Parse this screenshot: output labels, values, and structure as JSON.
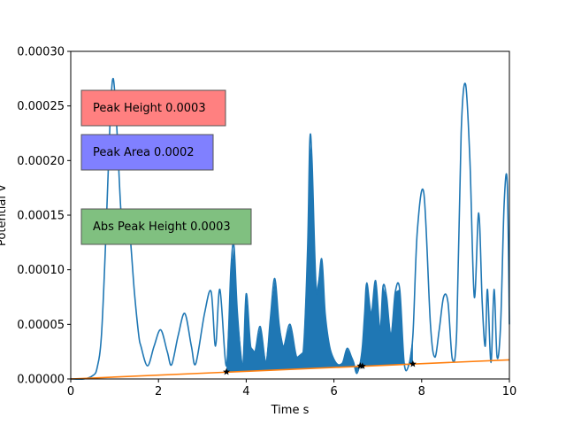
{
  "chart_data": {
    "type": "line",
    "title": "",
    "xlabel": "Time s",
    "ylabel": "Potential V",
    "xlim": [
      0,
      10
    ],
    "ylim": [
      0,
      0.0003
    ],
    "xticks": [
      "0",
      "2",
      "4",
      "6",
      "8",
      "10"
    ],
    "yticks": [
      "0.00000",
      "0.00005",
      "0.00010",
      "0.00015",
      "0.00020",
      "0.00025",
      "0.00030"
    ],
    "grid": false,
    "colors": {
      "signal": "#1f77b4",
      "baseline": "#ff7f0e",
      "peak_height_box": "#ff8080",
      "peak_area_box": "#8080ff",
      "abs_peak_box": "#80c080",
      "marker": "#000000"
    },
    "series": [
      {
        "key": "signal",
        "x": [
          0,
          0.3,
          0.5,
          0.6,
          0.7,
          0.8,
          0.9,
          0.97,
          1.05,
          1.15,
          1.25,
          1.32,
          1.45,
          1.55,
          1.6,
          1.75,
          1.9,
          2.05,
          2.2,
          2.3,
          2.45,
          2.6,
          2.75,
          2.85,
          3.05,
          3.2,
          3.3,
          3.4,
          3.55,
          3.65,
          3.72,
          3.8,
          3.92,
          4.0,
          4.1,
          4.2,
          4.32,
          4.45,
          4.55,
          4.65,
          4.75,
          4.85,
          5.0,
          5.15,
          5.3,
          5.4,
          5.45,
          5.5,
          5.6,
          5.72,
          5.8,
          5.9,
          6.0,
          6.1,
          6.2,
          6.3,
          6.4,
          6.45,
          6.52,
          6.6,
          6.65,
          6.7,
          6.75,
          6.85,
          6.95,
          7.05,
          7.12,
          7.2,
          7.3,
          7.4,
          7.5,
          7.6,
          7.7,
          7.8,
          7.9,
          8.05,
          8.2,
          8.3,
          8.4,
          8.5,
          8.6,
          8.7,
          8.8,
          8.9,
          9.0,
          9.1,
          9.2,
          9.3,
          9.38,
          9.45,
          9.5,
          9.58,
          9.65,
          9.72,
          9.8,
          9.88,
          9.95,
          10.0
        ],
        "y": [
          0,
          0.0,
          3e-06,
          1e-05,
          4e-05,
          0.00013,
          0.00024,
          0.000275,
          0.00023,
          0.00015,
          0.000125,
          0.000145,
          8e-05,
          4e-05,
          3e-05,
          1.2e-05,
          3e-05,
          4.5e-05,
          2.5e-05,
          1.3e-05,
          4e-05,
          6e-05,
          3e-05,
          1.4e-05,
          6e-05,
          8e-05,
          3e-05,
          8.2e-05,
          1.2e-05,
          0.0001,
          0.000122,
          6e-05,
          1.2e-05,
          7.8e-05,
          3e-05,
          2.5e-05,
          4.8e-05,
          1.5e-05,
          5.5e-05,
          9.2e-05,
          5e-05,
          3e-05,
          5e-05,
          2e-05,
          2.5e-05,
          0.00012,
          0.000218,
          0.0002,
          8e-05,
          0.00011,
          6e-05,
          3e-05,
          1.8e-05,
          1.3e-05,
          1.5e-05,
          2.8e-05,
          2e-05,
          1.5e-05,
          5e-06,
          1.5e-05,
          3e-05,
          6e-05,
          8.8e-05,
          6e-05,
          9e-05,
          4.5e-05,
          8.5e-05,
          7.5e-05,
          4e-05,
          8e-05,
          8.2e-05,
          1.5e-05,
          1.2e-05,
          4e-05,
          0.000135,
          0.00017,
          5e-05,
          2e-05,
          4.5e-05,
          7.5e-05,
          7e-05,
          1.8e-05,
          4.5e-05,
          0.000225,
          0.00027,
          0.0002,
          7.5e-05,
          0.000152,
          7e-05,
          3e-05,
          8.2e-05,
          1.5e-05,
          8.2e-05,
          2e-05,
          5e-05,
          0.00016,
          0.00018,
          5e-05
        ]
      },
      {
        "key": "baseline",
        "x": [
          0,
          10
        ],
        "y": [
          0,
          1.75e-05
        ]
      }
    ],
    "filled_regions": [
      {
        "x_start": 3.55,
        "x_end": 6.62
      },
      {
        "x_start": 6.62,
        "x_end": 7.8
      }
    ],
    "markers": [
      {
        "x": 3.55,
        "y": 6.5e-06
      },
      {
        "x": 6.6,
        "y": 1.2e-05
      },
      {
        "x": 6.65,
        "y": 1.18e-05
      },
      {
        "x": 7.8,
        "y": 1.37e-05
      }
    ],
    "annotations": [
      {
        "key": "peak_height",
        "label": "Peak Height 0.0003"
      },
      {
        "key": "peak_area",
        "label": "Peak Area 0.0002"
      },
      {
        "key": "abs_peak",
        "label": "Abs Peak Height 0.0003"
      }
    ]
  }
}
